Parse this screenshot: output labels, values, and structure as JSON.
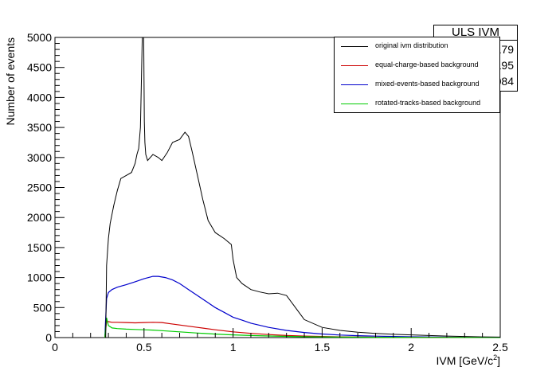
{
  "chart_data": {
    "type": "line",
    "xlabel": "IVM [GeV/c",
    "xlabel_sup": "2",
    "xlabel_end": "]",
    "ylabel": "Number of events",
    "xlim": [
      0,
      2.5
    ],
    "ylim": [
      0,
      5000
    ],
    "x_ticks": [
      0,
      0.5,
      1,
      1.5,
      2,
      2.5
    ],
    "x_tick_labels": [
      "0",
      "0.5",
      "1",
      "1.5",
      "2",
      "2.5"
    ],
    "y_ticks": [
      0,
      500,
      1000,
      1500,
      2000,
      2500,
      3000,
      3500,
      4000,
      4500,
      5000
    ],
    "y_tick_labels": [
      "0",
      "500",
      "1000",
      "1500",
      "2000",
      "2500",
      "3000",
      "3500",
      "4000",
      "4500",
      "5000"
    ],
    "grid": false,
    "legend_position": "top-right",
    "series": [
      {
        "name": "original ivm distribution",
        "color": "#000000",
        "x": [
          0.28,
          0.285,
          0.29,
          0.3,
          0.31,
          0.33,
          0.35,
          0.37,
          0.4,
          0.43,
          0.45,
          0.46,
          0.47,
          0.48,
          0.485,
          0.49,
          0.493,
          0.496,
          0.498,
          0.502,
          0.505,
          0.51,
          0.52,
          0.55,
          0.58,
          0.6,
          0.63,
          0.66,
          0.7,
          0.73,
          0.75,
          0.77,
          0.8,
          0.83,
          0.86,
          0.9,
          0.95,
          0.99,
          1.0,
          1.02,
          1.05,
          1.1,
          1.15,
          1.2,
          1.25,
          1.3,
          1.35,
          1.4,
          1.5,
          1.6,
          1.7,
          1.8,
          1.9,
          2.0,
          2.1,
          2.2,
          2.3,
          2.4,
          2.5
        ],
        "y": [
          0,
          0,
          1200,
          1650,
          1900,
          2200,
          2450,
          2650,
          2700,
          2750,
          2900,
          3050,
          3150,
          3500,
          4200,
          5000,
          5000,
          5000,
          5000,
          3600,
          3250,
          3050,
          2950,
          3050,
          3000,
          2950,
          3080,
          3250,
          3300,
          3420,
          3350,
          3100,
          2700,
          2300,
          1950,
          1750,
          1650,
          1550,
          1300,
          1000,
          900,
          800,
          760,
          730,
          740,
          700,
          500,
          300,
          170,
          120,
          90,
          70,
          55,
          45,
          35,
          25,
          18,
          12,
          8
        ]
      },
      {
        "name": "equal-charge-based background",
        "color": "#cc0000",
        "x": [
          0.28,
          0.29,
          0.3,
          0.32,
          0.35,
          0.4,
          0.45,
          0.5,
          0.55,
          0.6,
          0.65,
          0.7,
          0.8,
          0.9,
          1.0,
          1.1,
          1.2,
          1.3,
          1.4,
          1.5,
          1.6,
          1.8,
          2.0,
          2.2,
          2.5
        ],
        "y": [
          0,
          270,
          265,
          255,
          255,
          250,
          245,
          250,
          255,
          250,
          230,
          210,
          170,
          130,
          95,
          70,
          50,
          35,
          25,
          18,
          12,
          7,
          4,
          2,
          1
        ]
      },
      {
        "name": "mixed-events-based background",
        "color": "#0000cc",
        "x": [
          0.28,
          0.29,
          0.3,
          0.32,
          0.35,
          0.4,
          0.45,
          0.5,
          0.55,
          0.58,
          0.62,
          0.66,
          0.7,
          0.75,
          0.8,
          0.85,
          0.9,
          0.95,
          1.0,
          1.05,
          1.1,
          1.2,
          1.3,
          1.4,
          1.5,
          1.6,
          1.7,
          1.8,
          1.9,
          2.0,
          2.1,
          2.2,
          2.3,
          2.4,
          2.5
        ],
        "y": [
          0,
          650,
          750,
          800,
          840,
          880,
          930,
          980,
          1020,
          1020,
          1000,
          960,
          900,
          800,
          700,
          600,
          500,
          420,
          340,
          290,
          240,
          170,
          120,
          85,
          60,
          43,
          32,
          24,
          18,
          13,
          10,
          7,
          5,
          3,
          2
        ]
      },
      {
        "name": "rotated-tracks-based background",
        "color": "#00cc00",
        "x": [
          0.28,
          0.29,
          0.3,
          0.32,
          0.35,
          0.4,
          0.45,
          0.5,
          0.55,
          0.6,
          0.7,
          0.8,
          0.9,
          1.0,
          1.1,
          1.2,
          1.3,
          1.4,
          1.5,
          1.6,
          1.8,
          2.0,
          2.2,
          2.5
        ],
        "y": [
          0,
          330,
          200,
          160,
          150,
          140,
          135,
          130,
          125,
          115,
          95,
          75,
          58,
          45,
          35,
          27,
          20,
          15,
          12,
          9,
          5,
          3,
          2,
          1
        ]
      }
    ]
  },
  "stats": {
    "title": "ULS IVM",
    "entries_value": "817179",
    "mean_value": "0.7195",
    "stddev_value": "0.3084"
  }
}
